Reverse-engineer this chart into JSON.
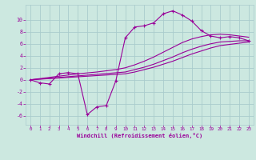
{
  "bg_color": "#cce8e0",
  "grid_color": "#aacccc",
  "line_color": "#990099",
  "xlabel": "Windchill (Refroidissement éolien,°C)",
  "xlim": [
    -0.5,
    23.5
  ],
  "ylim": [
    -7.5,
    12.5
  ],
  "yticks": [
    -6,
    -4,
    -2,
    0,
    2,
    4,
    6,
    8,
    10
  ],
  "xticks": [
    0,
    1,
    2,
    3,
    4,
    5,
    6,
    7,
    8,
    9,
    10,
    11,
    12,
    13,
    14,
    15,
    16,
    17,
    18,
    19,
    20,
    21,
    22,
    23
  ],
  "series1_x": [
    0,
    1,
    2,
    3,
    4,
    5,
    6,
    7,
    8,
    9,
    10,
    11,
    12,
    13,
    14,
    15,
    16,
    17,
    18,
    19,
    20,
    21,
    22,
    23
  ],
  "series1_y": [
    0.0,
    -0.5,
    -0.7,
    1.0,
    1.2,
    1.0,
    -5.8,
    -4.5,
    -4.3,
    -0.2,
    7.0,
    8.8,
    9.0,
    9.5,
    11.0,
    11.5,
    10.8,
    9.8,
    8.2,
    7.3,
    7.0,
    7.2,
    7.0,
    6.5
  ],
  "series2_x": [
    0,
    1,
    2,
    3,
    4,
    5,
    6,
    7,
    8,
    9,
    10,
    11,
    12,
    13,
    14,
    15,
    16,
    17,
    18,
    19,
    20,
    21,
    22,
    23
  ],
  "series2_y": [
    0.0,
    0.13,
    0.26,
    0.39,
    0.52,
    0.65,
    0.78,
    0.91,
    1.04,
    1.17,
    1.3,
    1.7,
    2.1,
    2.6,
    3.2,
    3.8,
    4.5,
    5.1,
    5.6,
    6.0,
    6.3,
    6.4,
    6.5,
    6.5
  ],
  "series3_x": [
    0,
    1,
    2,
    3,
    4,
    5,
    6,
    7,
    8,
    9,
    10,
    11,
    12,
    13,
    14,
    15,
    16,
    17,
    18,
    19,
    20,
    21,
    22,
    23
  ],
  "series3_y": [
    0.0,
    0.1,
    0.2,
    0.3,
    0.4,
    0.5,
    0.6,
    0.7,
    0.8,
    0.9,
    1.0,
    1.3,
    1.7,
    2.1,
    2.6,
    3.1,
    3.7,
    4.3,
    4.8,
    5.3,
    5.7,
    5.9,
    6.1,
    6.3
  ],
  "series4_x": [
    0,
    1,
    2,
    3,
    4,
    5,
    6,
    7,
    8,
    9,
    10,
    11,
    12,
    13,
    14,
    15,
    16,
    17,
    18,
    19,
    20,
    21,
    22,
    23
  ],
  "series4_y": [
    0.0,
    0.2,
    0.4,
    0.6,
    0.8,
    1.0,
    1.15,
    1.3,
    1.5,
    1.7,
    2.0,
    2.5,
    3.1,
    3.8,
    4.6,
    5.4,
    6.2,
    6.8,
    7.2,
    7.5,
    7.6,
    7.5,
    7.3,
    7.1
  ]
}
